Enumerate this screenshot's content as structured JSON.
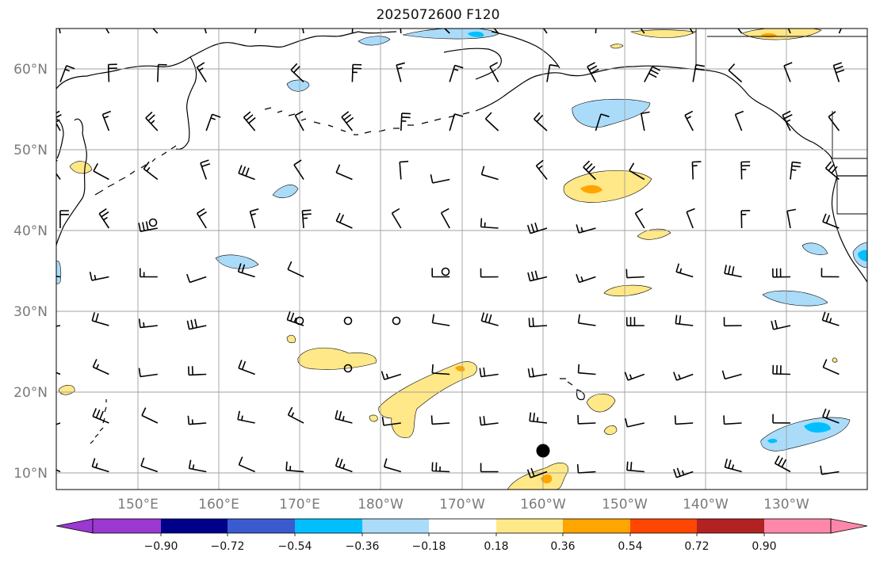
{
  "title": "2025072600 F120",
  "lat_labels": [
    "60°N",
    "50°N",
    "40°N",
    "30°N",
    "20°N",
    "10°N"
  ],
  "lon_labels": [
    "150°E",
    "160°E",
    "170°E",
    "180°W",
    "170°W",
    "160°W",
    "150°W",
    "140°W",
    "130°W"
  ],
  "colorbar": {
    "tick_labels": [
      "−0.90",
      "−0.72",
      "−0.54",
      "−0.36",
      "−0.18",
      "0.18",
      "0.36",
      "0.54",
      "0.72",
      "0.90"
    ],
    "colors": [
      "#9b38d0",
      "#00008b",
      "#3a5bd0",
      "#00bfff",
      "#aadcfa",
      "#ffffff",
      "#ffe888",
      "#ffa500",
      "#ff4500",
      "#b22222",
      "#ff88aa"
    ]
  },
  "colors": {
    "land_line": "#000000",
    "grid": "#a0a0a0",
    "light_blue": "#aadcfa",
    "cyan": "#00bfff",
    "yellow": "#ffe888",
    "orange": "#ffa500"
  },
  "markers": {
    "storm_center": "black-dot"
  }
}
